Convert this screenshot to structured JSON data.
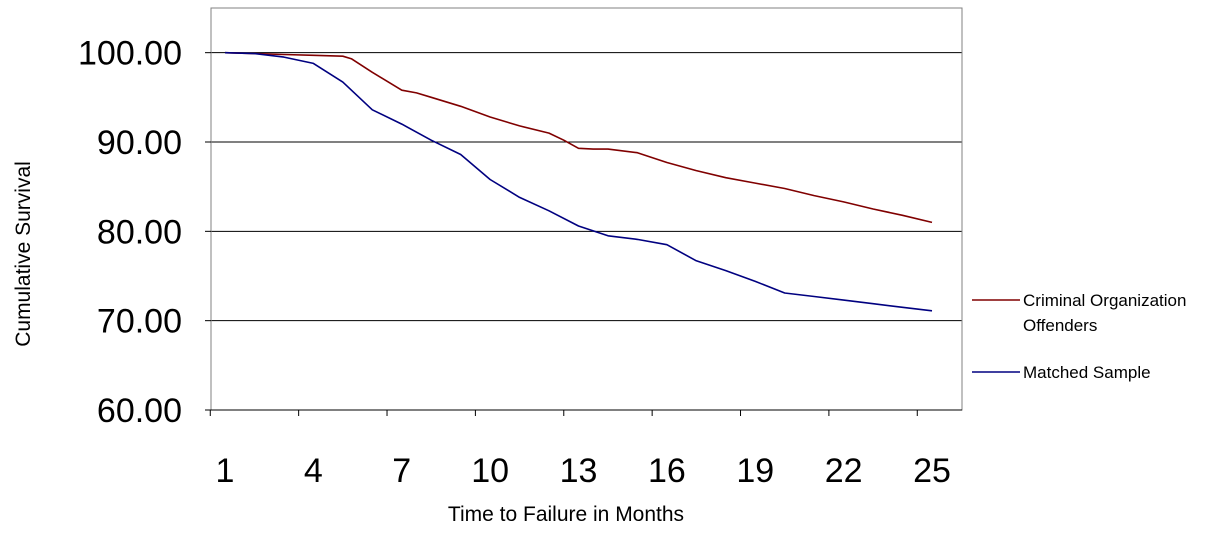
{
  "chart_data": {
    "type": "line",
    "title": "",
    "xlabel": "Time to Failure in Months",
    "ylabel": "Cumulative Survival",
    "xlim": [
      1,
      25
    ],
    "ylim": [
      60,
      105
    ],
    "y_ticks": [
      60,
      70,
      80,
      90,
      100
    ],
    "y_tick_labels": [
      "60.00",
      "70.00",
      "80.00",
      "90.00",
      "100.00"
    ],
    "x_tick_labels": [
      "1",
      "4",
      "7",
      "10",
      "13",
      "16",
      "19",
      "22",
      "25"
    ],
    "x_tick_values": [
      1,
      4,
      7,
      10,
      13,
      16,
      19,
      22,
      25
    ],
    "grid": "horizontal",
    "legend_position": "right",
    "series": [
      {
        "name": "Criminal Organization Offenders",
        "color": "#800000",
        "x": [
          1,
          2,
          3,
          4,
          5,
          5.3,
          6,
          7,
          7.5,
          8,
          9,
          10,
          11,
          12,
          12.5,
          13,
          13.5,
          14,
          15,
          16,
          17,
          18,
          19,
          20,
          21,
          22,
          23,
          24,
          25
        ],
        "values": [
          100.0,
          99.9,
          99.8,
          99.7,
          99.6,
          99.3,
          97.8,
          95.8,
          95.5,
          95.0,
          94.0,
          92.8,
          91.8,
          91.0,
          90.2,
          89.3,
          89.2,
          89.2,
          88.8,
          87.7,
          86.8,
          86.0,
          85.4,
          84.8,
          84.0,
          83.3,
          82.5,
          81.8,
          81.0
        ]
      },
      {
        "name": "Matched Sample",
        "color": "#000080",
        "x": [
          1,
          2,
          3,
          4,
          5,
          6,
          7,
          8,
          9,
          10,
          11,
          12,
          13,
          14,
          15,
          16,
          17,
          18,
          19,
          20,
          21,
          22,
          23,
          24,
          25
        ],
        "values": [
          100.0,
          99.9,
          99.5,
          98.8,
          96.7,
          93.6,
          92.0,
          90.2,
          88.6,
          85.8,
          83.8,
          82.3,
          80.6,
          79.5,
          79.1,
          78.5,
          76.7,
          75.6,
          74.4,
          73.1,
          72.7,
          72.3,
          71.9,
          71.5,
          71.1
        ]
      }
    ]
  }
}
